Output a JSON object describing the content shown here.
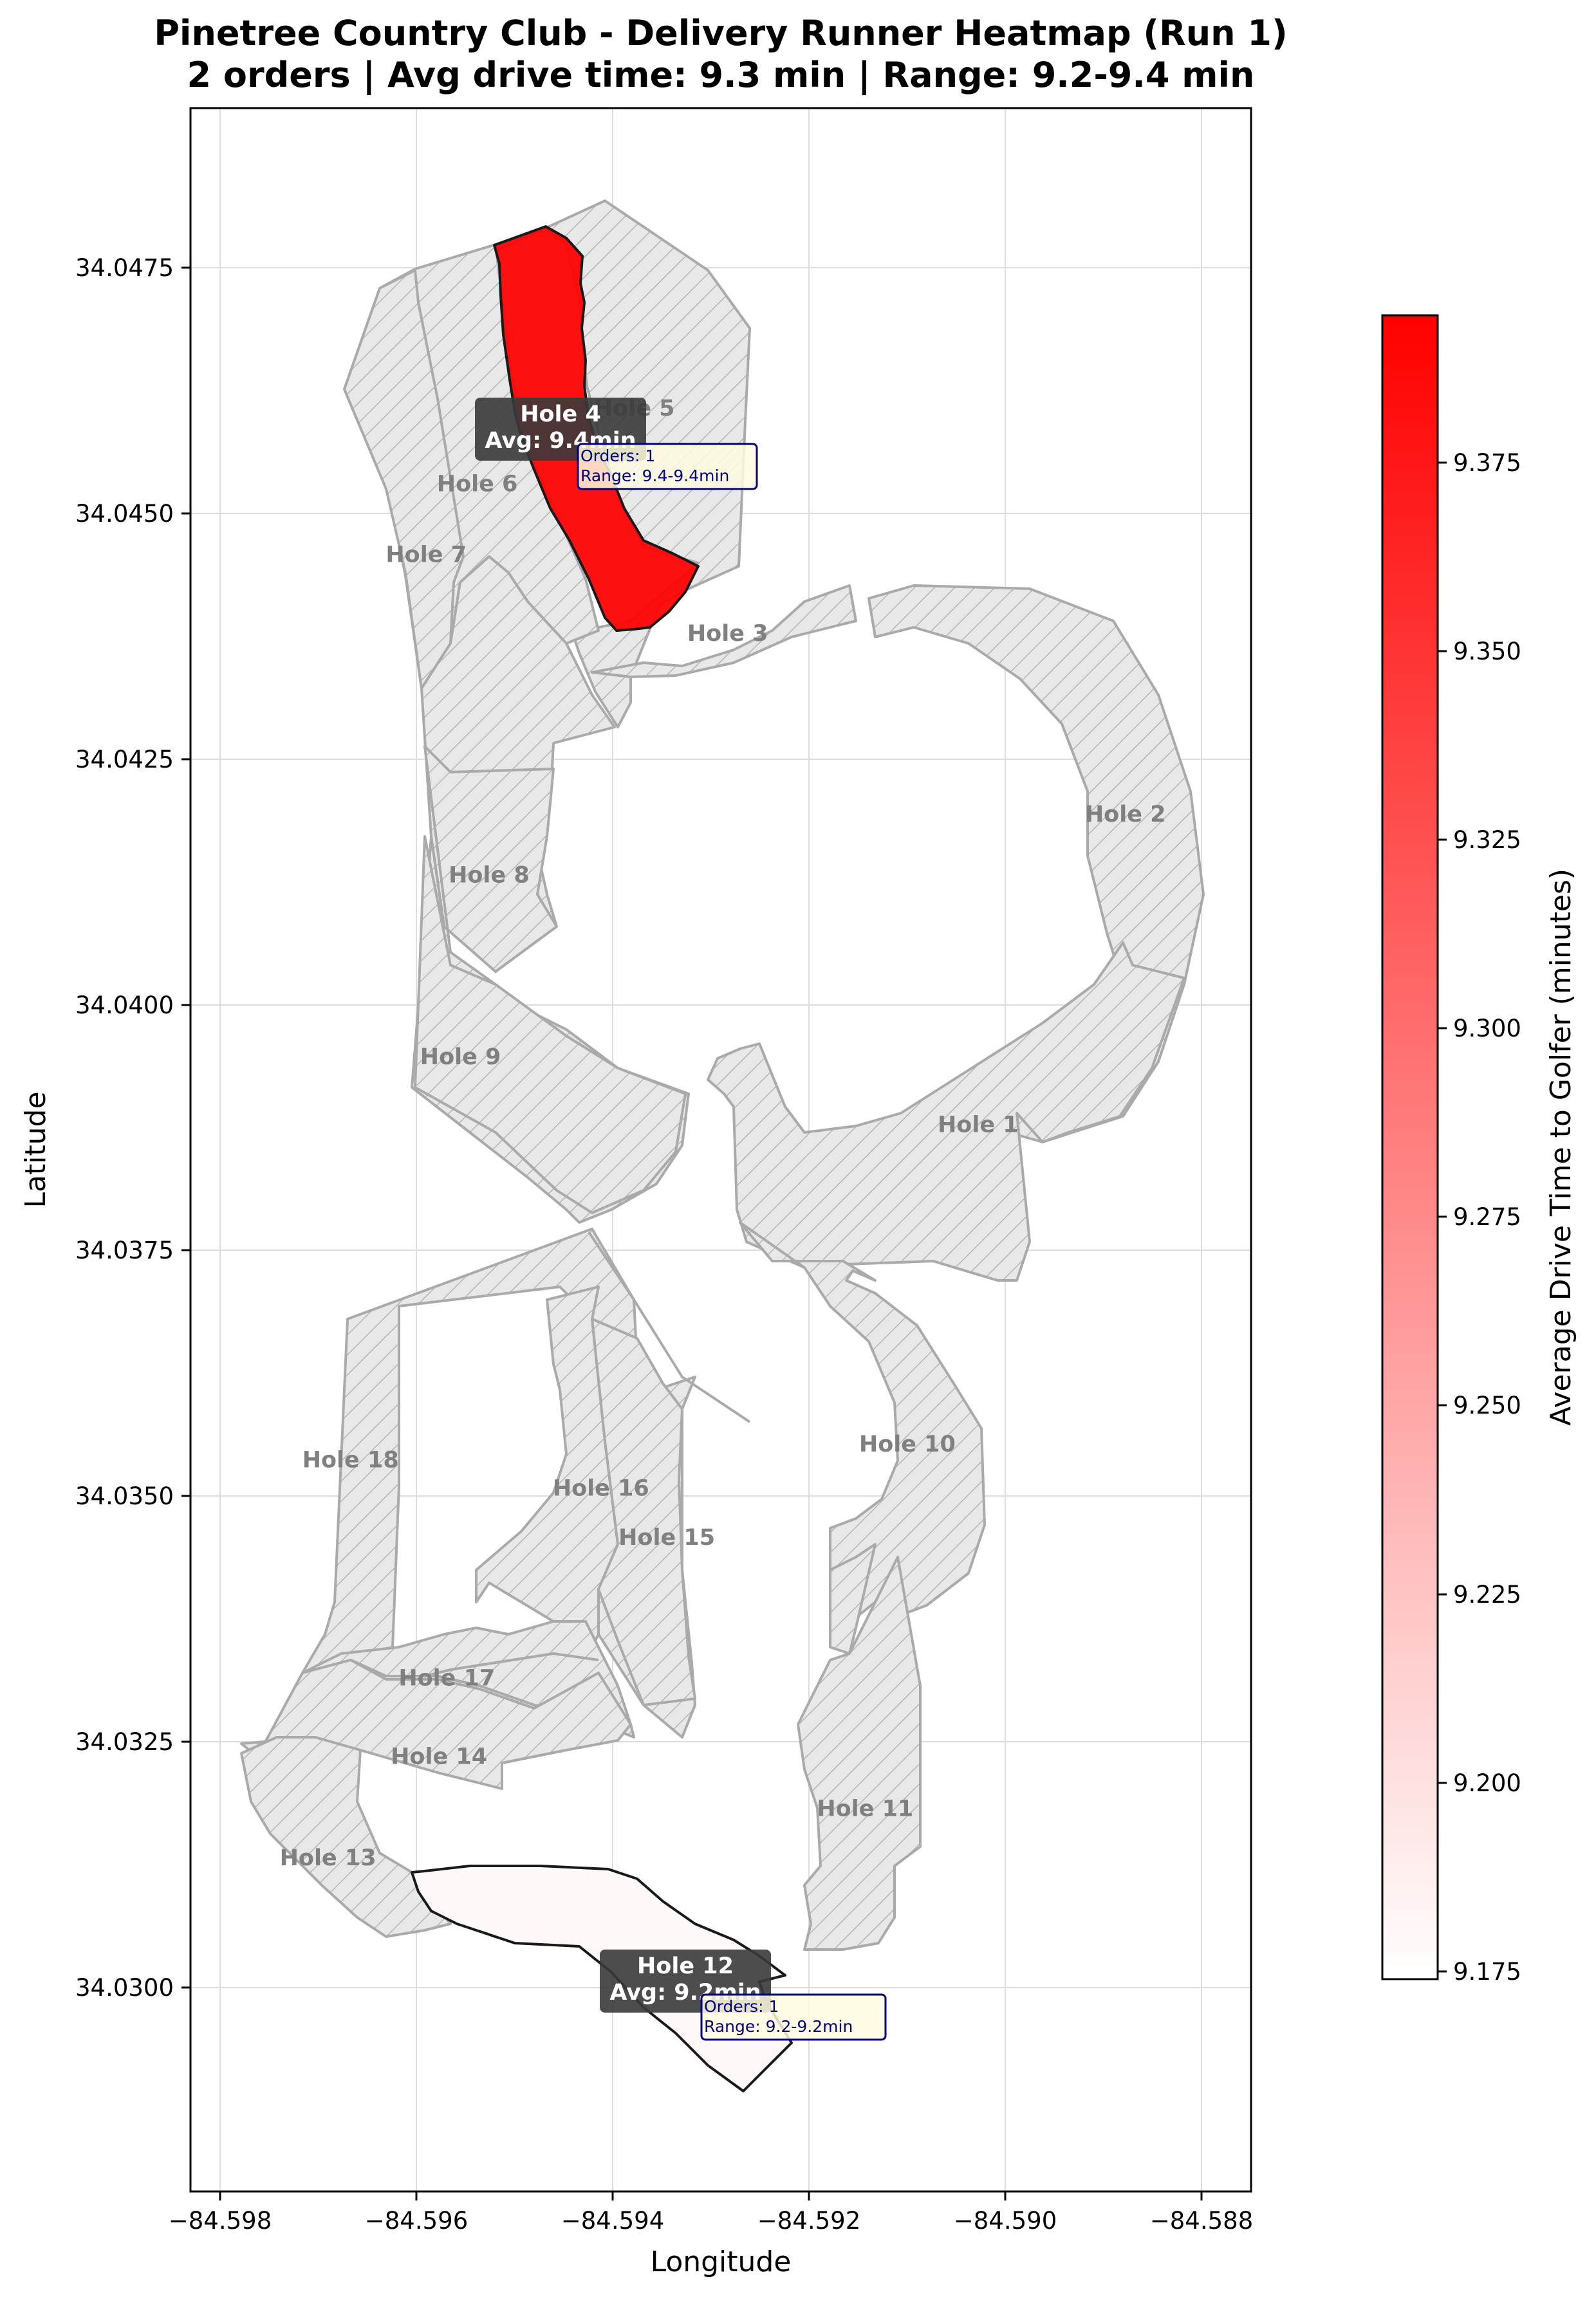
{
  "title": {
    "line1": "Pinetree Country Club - Delivery Runner Heatmap (Run 1)",
    "line2": "2 orders | Avg drive time: 9.3 min | Range: 9.2-9.4 min"
  },
  "axes": {
    "xlabel": "Longitude",
    "ylabel": "Latitude",
    "xlim": [
      -84.5983,
      -84.5875
    ],
    "ylim": [
      34.0282,
      34.0494
    ],
    "x_ticks": [
      -84.598,
      -84.596,
      -84.594,
      -84.592,
      -84.59,
      -84.588
    ],
    "x_tick_labels": [
      "−84.598",
      "−84.596",
      "−84.594",
      "−84.592",
      "−84.590",
      "−84.588"
    ],
    "y_ticks": [
      34.03,
      34.0325,
      34.035,
      34.0375,
      34.04,
      34.0425,
      34.045,
      34.0475
    ],
    "y_tick_labels": [
      "34.0300",
      "34.0325",
      "34.0350",
      "34.0375",
      "34.0400",
      "34.0425",
      "34.0450",
      "34.0475"
    ],
    "grid": true
  },
  "colorbar": {
    "label": "Average Drive Time to Golfer (minutes)",
    "min": 9.175,
    "max": 9.3925,
    "low_color": "#ffffff",
    "high_color": "#ff0000",
    "ticks": [
      9.175,
      9.2,
      9.225,
      9.25,
      9.275,
      9.3,
      9.325,
      9.35,
      9.375
    ],
    "tick_labels": [
      "9.175",
      "9.200",
      "9.225",
      "9.250",
      "9.275",
      "9.300",
      "9.325",
      "9.350",
      "9.375"
    ]
  },
  "colors": {
    "inactive_fill": "#e8e8e8",
    "inactive_stroke": "#aaaaaa",
    "hatch": "#bbbbbb",
    "active_high": "#ff2a2a",
    "active_low": "#fbfbfb",
    "annotation_bg": "#3a3a3a",
    "info_bg": "#fffbe0",
    "info_border": "#000080"
  },
  "chart_data": {
    "type": "choropleth_map",
    "active_holes": [
      {
        "hole": "Hole 4",
        "avg_label": "Avg: 9.4min",
        "avg_drive_time": 9.39,
        "orders_label": "Orders: 1",
        "range_label": "Range: 9.4-9.4min"
      },
      {
        "hole": "Hole 12",
        "avg_label": "Avg: 9.2min",
        "avg_drive_time": 9.18,
        "orders_label": "Orders: 1",
        "range_label": "Range: 9.2-9.2min"
      }
    ],
    "hole_labels": [
      {
        "text": "Hole 1",
        "lon": -84.59028,
        "lat": 34.03898
      },
      {
        "text": "Hole 2",
        "lon": -84.58878,
        "lat": 34.04214
      },
      {
        "text": "Hole 3",
        "lon": -84.59283,
        "lat": 34.04398
      },
      {
        "text": "Hole 5",
        "lon": -84.59378,
        "lat": 34.04627
      },
      {
        "text": "Hole 6",
        "lon": -84.59538,
        "lat": 34.0455
      },
      {
        "text": "Hole 7",
        "lon": -84.5959,
        "lat": 34.04478
      },
      {
        "text": "Hole 8",
        "lon": -84.59526,
        "lat": 34.04152
      },
      {
        "text": "Hole 9",
        "lon": -84.59555,
        "lat": 34.03967
      },
      {
        "text": "Hole 10",
        "lon": -84.591,
        "lat": 34.03573
      },
      {
        "text": "Hole 11",
        "lon": -84.59143,
        "lat": 34.03202
      },
      {
        "text": "Hole 13",
        "lon": -84.5969,
        "lat": 34.03152
      },
      {
        "text": "Hole 14",
        "lon": -84.59577,
        "lat": 34.03255
      },
      {
        "text": "Hole 15",
        "lon": -84.59345,
        "lat": 34.03478
      },
      {
        "text": "Hole 16",
        "lon": -84.59412,
        "lat": 34.03528
      },
      {
        "text": "Hole 17",
        "lon": -84.59569,
        "lat": 34.03335
      },
      {
        "text": "Hole 18",
        "lon": -84.59667,
        "lat": 34.03557
      }
    ]
  }
}
